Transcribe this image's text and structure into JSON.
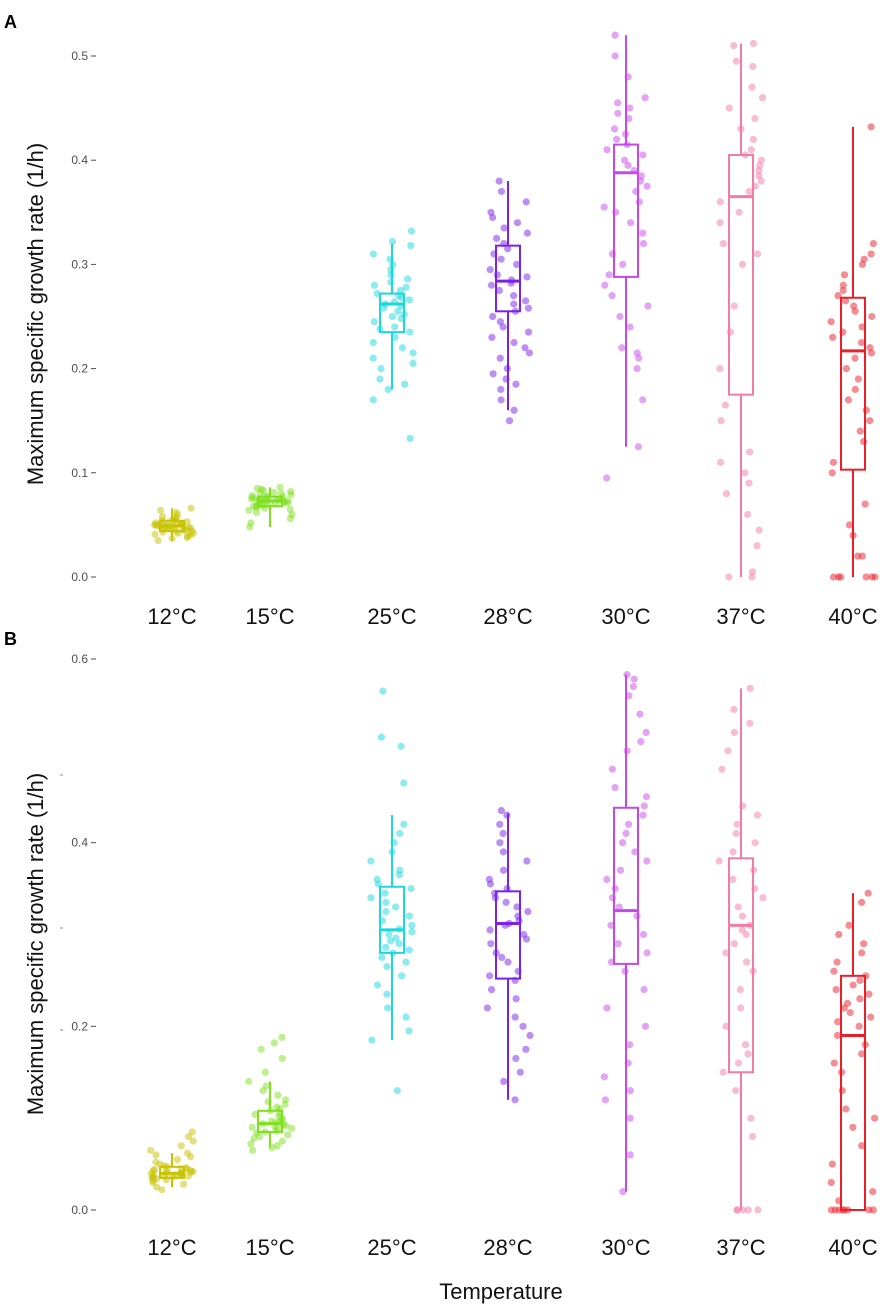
{
  "chart_data": [
    {
      "type": "box",
      "panel_label": "A",
      "ylabel": "Maximum  specific growth rate (1/h)",
      "xlabel": "",
      "ylim": [
        0,
        0.52
      ],
      "yticks": [
        0.0,
        0.1,
        0.2,
        0.3,
        0.4,
        0.5
      ],
      "ytick_labels": [
        "0.0",
        "0.1",
        "0.2",
        "0.3",
        "0.4",
        "0.5"
      ],
      "grid": false,
      "categories": [
        "12°C",
        "15°C",
        "25°C",
        "28°C",
        "30°C",
        "37°C",
        "40°C"
      ],
      "series": [
        {
          "category": "12°C",
          "color": "#c8c200",
          "min": 0.035,
          "q1": 0.044,
          "median": 0.049,
          "q3": 0.054,
          "max": 0.066,
          "points": [
            0.035,
            0.037,
            0.038,
            0.039,
            0.04,
            0.041,
            0.042,
            0.042,
            0.043,
            0.044,
            0.044,
            0.045,
            0.045,
            0.046,
            0.046,
            0.047,
            0.047,
            0.047,
            0.048,
            0.048,
            0.048,
            0.049,
            0.049,
            0.049,
            0.05,
            0.05,
            0.05,
            0.051,
            0.051,
            0.051,
            0.052,
            0.052,
            0.053,
            0.053,
            0.054,
            0.054,
            0.055,
            0.056,
            0.057,
            0.058,
            0.06,
            0.062,
            0.064,
            0.066
          ]
        },
        {
          "category": "15°C",
          "color": "#7fe01e",
          "min": 0.048,
          "q1": 0.068,
          "median": 0.073,
          "q3": 0.077,
          "max": 0.086,
          "points": [
            0.048,
            0.052,
            0.056,
            0.06,
            0.062,
            0.064,
            0.065,
            0.066,
            0.067,
            0.068,
            0.068,
            0.069,
            0.069,
            0.07,
            0.07,
            0.071,
            0.071,
            0.072,
            0.072,
            0.072,
            0.073,
            0.073,
            0.073,
            0.074,
            0.074,
            0.074,
            0.075,
            0.075,
            0.075,
            0.076,
            0.076,
            0.077,
            0.077,
            0.078,
            0.078,
            0.079,
            0.08,
            0.08,
            0.081,
            0.082,
            0.083,
            0.084,
            0.085,
            0.086
          ]
        },
        {
          "category": "25°C",
          "color": "#1ad8dc",
          "min": 0.18,
          "q1": 0.235,
          "median": 0.262,
          "q3": 0.272,
          "max": 0.32,
          "points": [
            0.133,
            0.17,
            0.18,
            0.185,
            0.19,
            0.2,
            0.205,
            0.21,
            0.215,
            0.22,
            0.225,
            0.23,
            0.235,
            0.238,
            0.24,
            0.245,
            0.248,
            0.25,
            0.252,
            0.255,
            0.258,
            0.26,
            0.262,
            0.264,
            0.266,
            0.268,
            0.27,
            0.272,
            0.275,
            0.278,
            0.28,
            0.283,
            0.286,
            0.29,
            0.295,
            0.3,
            0.305,
            0.31,
            0.318,
            0.322,
            0.332
          ]
        },
        {
          "category": "28°C",
          "color": "#7a22e6",
          "min": 0.16,
          "q1": 0.255,
          "median": 0.284,
          "q3": 0.318,
          "max": 0.38,
          "points": [
            0.15,
            0.16,
            0.17,
            0.18,
            0.185,
            0.19,
            0.195,
            0.2,
            0.21,
            0.215,
            0.22,
            0.225,
            0.23,
            0.235,
            0.24,
            0.245,
            0.25,
            0.255,
            0.258,
            0.262,
            0.265,
            0.27,
            0.275,
            0.28,
            0.282,
            0.285,
            0.288,
            0.29,
            0.295,
            0.3,
            0.305,
            0.31,
            0.315,
            0.32,
            0.325,
            0.33,
            0.335,
            0.34,
            0.345,
            0.35,
            0.36,
            0.37,
            0.38
          ]
        },
        {
          "category": "30°C",
          "color": "#c549e8",
          "min": 0.125,
          "q1": 0.288,
          "median": 0.388,
          "q3": 0.415,
          "max": 0.52,
          "points": [
            0.095,
            0.125,
            0.17,
            0.2,
            0.21,
            0.215,
            0.22,
            0.24,
            0.25,
            0.26,
            0.27,
            0.28,
            0.29,
            0.3,
            0.31,
            0.32,
            0.33,
            0.34,
            0.35,
            0.355,
            0.36,
            0.37,
            0.375,
            0.38,
            0.385,
            0.39,
            0.395,
            0.4,
            0.405,
            0.41,
            0.415,
            0.42,
            0.425,
            0.43,
            0.44,
            0.445,
            0.45,
            0.455,
            0.46,
            0.48,
            0.5,
            0.52
          ]
        },
        {
          "category": "37°C",
          "color": "#f27ca6",
          "min": 0.0,
          "q1": 0.175,
          "median": 0.365,
          "q3": 0.405,
          "max": 0.512,
          "points": [
            0.0,
            0.0,
            0.005,
            0.03,
            0.045,
            0.06,
            0.08,
            0.09,
            0.1,
            0.11,
            0.12,
            0.15,
            0.165,
            0.2,
            0.235,
            0.26,
            0.3,
            0.31,
            0.32,
            0.34,
            0.35,
            0.36,
            0.37,
            0.375,
            0.38,
            0.385,
            0.39,
            0.395,
            0.4,
            0.405,
            0.41,
            0.42,
            0.43,
            0.44,
            0.45,
            0.46,
            0.47,
            0.49,
            0.495,
            0.51,
            0.512
          ]
        },
        {
          "category": "40°C",
          "color": "#e8202a",
          "min": 0.0,
          "q1": 0.103,
          "median": 0.217,
          "q3": 0.268,
          "max": 0.432,
          "points": [
            0.0,
            0.0,
            0.0,
            0.0,
            0.0,
            0.0,
            0.02,
            0.02,
            0.04,
            0.05,
            0.07,
            0.1,
            0.11,
            0.13,
            0.14,
            0.15,
            0.16,
            0.17,
            0.18,
            0.19,
            0.2,
            0.21,
            0.215,
            0.22,
            0.225,
            0.23,
            0.235,
            0.24,
            0.245,
            0.25,
            0.255,
            0.26,
            0.265,
            0.27,
            0.275,
            0.28,
            0.29,
            0.3,
            0.305,
            0.31,
            0.32,
            0.432
          ]
        }
      ]
    },
    {
      "type": "box",
      "panel_label": "B",
      "ylabel": "Maximum  specific growth rate (1/h)",
      "xlabel": "Temperature",
      "ylim": [
        0,
        0.6
      ],
      "yticks": [
        0.0,
        0.2,
        0.4,
        0.6
      ],
      "ytick_labels": [
        "0.0",
        "0.2",
        "0.4",
        "0.6"
      ],
      "grid": false,
      "categories": [
        "12°C",
        "15°C",
        "25°C",
        "28°C",
        "30°C",
        "37°C",
        "40°C"
      ],
      "series": [
        {
          "category": "12°C",
          "color": "#c8c200",
          "min": 0.025,
          "q1": 0.035,
          "median": 0.04,
          "q3": 0.047,
          "max": 0.062,
          "points": [
            0.022,
            0.025,
            0.028,
            0.03,
            0.032,
            0.033,
            0.034,
            0.035,
            0.036,
            0.036,
            0.037,
            0.037,
            0.038,
            0.038,
            0.039,
            0.039,
            0.04,
            0.04,
            0.04,
            0.041,
            0.041,
            0.042,
            0.042,
            0.043,
            0.043,
            0.044,
            0.045,
            0.045,
            0.046,
            0.047,
            0.048,
            0.05,
            0.052,
            0.055,
            0.058,
            0.06,
            0.062,
            0.065,
            0.07,
            0.075,
            0.08,
            0.085
          ]
        },
        {
          "category": "15°C",
          "color": "#7fe01e",
          "min": 0.068,
          "q1": 0.085,
          "median": 0.094,
          "q3": 0.108,
          "max": 0.14,
          "points": [
            0.065,
            0.068,
            0.07,
            0.072,
            0.075,
            0.078,
            0.08,
            0.082,
            0.084,
            0.085,
            0.086,
            0.088,
            0.089,
            0.09,
            0.091,
            0.092,
            0.093,
            0.094,
            0.095,
            0.096,
            0.097,
            0.098,
            0.1,
            0.102,
            0.104,
            0.106,
            0.108,
            0.11,
            0.112,
            0.115,
            0.118,
            0.12,
            0.125,
            0.13,
            0.135,
            0.14,
            0.15,
            0.165,
            0.175,
            0.182,
            0.188
          ]
        },
        {
          "category": "25°C",
          "color": "#1ad8dc",
          "min": 0.185,
          "q1": 0.28,
          "median": 0.305,
          "q3": 0.352,
          "max": 0.43,
          "points": [
            0.13,
            0.185,
            0.195,
            0.21,
            0.22,
            0.235,
            0.245,
            0.255,
            0.265,
            0.27,
            0.275,
            0.28,
            0.283,
            0.286,
            0.29,
            0.293,
            0.296,
            0.3,
            0.303,
            0.306,
            0.31,
            0.315,
            0.32,
            0.325,
            0.33,
            0.335,
            0.34,
            0.345,
            0.35,
            0.355,
            0.36,
            0.365,
            0.37,
            0.38,
            0.39,
            0.4,
            0.41,
            0.42,
            0.465,
            0.505,
            0.515,
            0.565
          ]
        },
        {
          "category": "28°C",
          "color": "#7a22e6",
          "min": 0.12,
          "q1": 0.252,
          "median": 0.312,
          "q3": 0.347,
          "max": 0.432,
          "points": [
            0.12,
            0.14,
            0.15,
            0.165,
            0.175,
            0.19,
            0.2,
            0.21,
            0.22,
            0.23,
            0.24,
            0.25,
            0.255,
            0.26,
            0.27,
            0.275,
            0.28,
            0.29,
            0.295,
            0.3,
            0.305,
            0.31,
            0.312,
            0.315,
            0.32,
            0.325,
            0.33,
            0.335,
            0.34,
            0.345,
            0.35,
            0.355,
            0.36,
            0.37,
            0.38,
            0.39,
            0.4,
            0.41,
            0.42,
            0.43,
            0.435
          ]
        },
        {
          "category": "30°C",
          "color": "#c549e8",
          "min": 0.02,
          "q1": 0.268,
          "median": 0.326,
          "q3": 0.438,
          "max": 0.583,
          "points": [
            0.02,
            0.06,
            0.1,
            0.12,
            0.13,
            0.145,
            0.16,
            0.18,
            0.2,
            0.22,
            0.24,
            0.26,
            0.27,
            0.28,
            0.29,
            0.3,
            0.31,
            0.32,
            0.33,
            0.34,
            0.35,
            0.36,
            0.37,
            0.38,
            0.39,
            0.4,
            0.41,
            0.42,
            0.43,
            0.44,
            0.45,
            0.46,
            0.48,
            0.5,
            0.51,
            0.52,
            0.54,
            0.56,
            0.57,
            0.578,
            0.583
          ]
        },
        {
          "category": "37°C",
          "color": "#f27ca6",
          "min": 0.0,
          "q1": 0.15,
          "median": 0.31,
          "q3": 0.383,
          "max": 0.568,
          "points": [
            0.0,
            0.0,
            0.0,
            0.0,
            0.0,
            0.08,
            0.1,
            0.13,
            0.15,
            0.16,
            0.17,
            0.18,
            0.2,
            0.22,
            0.24,
            0.26,
            0.27,
            0.28,
            0.29,
            0.3,
            0.305,
            0.31,
            0.32,
            0.33,
            0.34,
            0.35,
            0.36,
            0.37,
            0.38,
            0.39,
            0.4,
            0.41,
            0.42,
            0.43,
            0.44,
            0.48,
            0.5,
            0.52,
            0.53,
            0.545,
            0.568
          ]
        },
        {
          "category": "40°C",
          "color": "#e8202a",
          "min": 0.0,
          "q1": 0.0,
          "median": 0.19,
          "q3": 0.255,
          "max": 0.345,
          "points": [
            0.0,
            0.0,
            0.0,
            0.0,
            0.0,
            0.0,
            0.0,
            0.0,
            0.01,
            0.02,
            0.03,
            0.05,
            0.07,
            0.09,
            0.1,
            0.11,
            0.13,
            0.15,
            0.16,
            0.17,
            0.18,
            0.19,
            0.2,
            0.205,
            0.21,
            0.215,
            0.22,
            0.225,
            0.23,
            0.235,
            0.24,
            0.245,
            0.25,
            0.255,
            0.26,
            0.27,
            0.28,
            0.29,
            0.3,
            0.31,
            0.335,
            0.345
          ]
        }
      ]
    }
  ]
}
